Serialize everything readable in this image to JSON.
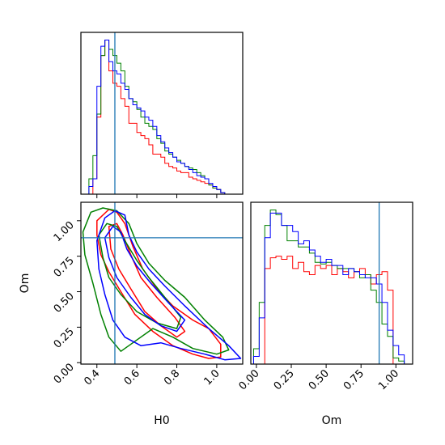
{
  "chart_data": {
    "type": "corner",
    "parameters": [
      "H0",
      "Om"
    ],
    "truth": {
      "H0": 0.49,
      "Om": 0.88
    },
    "series": [
      {
        "color": "#ff0000"
      },
      {
        "color": "#008000"
      },
      {
        "color": "#0000ff"
      }
    ],
    "truth_color": "#1f77b4",
    "panels": [
      {
        "id": "hist-H0",
        "type": "histogram",
        "x_range": [
          0.32,
          1.13
        ],
        "bin_edges": [
          0.32,
          0.36,
          0.38,
          0.4,
          0.42,
          0.44,
          0.46,
          0.48,
          0.5,
          0.52,
          0.54,
          0.56,
          0.58,
          0.6,
          0.62,
          0.64,
          0.66,
          0.68,
          0.7,
          0.72,
          0.74,
          0.76,
          0.78,
          0.8,
          0.82,
          0.84,
          0.86,
          0.88,
          0.9,
          0.92,
          0.94,
          0.96,
          0.98,
          1.0,
          1.02,
          1.04,
          1.07,
          1.13
        ],
        "ylim": [
          0,
          1.05
        ],
        "counts": [
          [
            0.0,
            0.0,
            0.1,
            0.5,
            0.9,
            1.0,
            0.8,
            0.72,
            0.7,
            0.62,
            0.57,
            0.46,
            0.46,
            0.4,
            0.38,
            0.36,
            0.32,
            0.26,
            0.26,
            0.24,
            0.2,
            0.18,
            0.17,
            0.15,
            0.14,
            0.14,
            0.11,
            0.1,
            0.09,
            0.08,
            0.07,
            0.06,
            0.04,
            0.03,
            0.01,
            0.0,
            0.0
          ],
          [
            0.0,
            0.1,
            0.25,
            0.52,
            0.9,
            1.0,
            0.94,
            0.9,
            0.85,
            0.8,
            0.7,
            0.62,
            0.6,
            0.55,
            0.5,
            0.46,
            0.44,
            0.42,
            0.36,
            0.33,
            0.28,
            0.26,
            0.24,
            0.22,
            0.2,
            0.18,
            0.17,
            0.16,
            0.14,
            0.12,
            0.1,
            0.06,
            0.04,
            0.03,
            0.01,
            0.0,
            0.0
          ],
          [
            0.0,
            0.05,
            0.1,
            0.7,
            0.96,
            1.0,
            0.86,
            0.8,
            0.78,
            0.72,
            0.68,
            0.62,
            0.58,
            0.56,
            0.54,
            0.5,
            0.48,
            0.44,
            0.38,
            0.34,
            0.3,
            0.27,
            0.24,
            0.21,
            0.2,
            0.18,
            0.16,
            0.14,
            0.12,
            0.11,
            0.1,
            0.07,
            0.05,
            0.03,
            0.01,
            0.0,
            0.0
          ]
        ]
      },
      {
        "id": "hist-Om",
        "type": "histogram",
        "x_range": [
          -0.04,
          1.12
        ],
        "bin_edges": [
          -0.02,
          0.02,
          0.06,
          0.1,
          0.14,
          0.18,
          0.22,
          0.26,
          0.3,
          0.34,
          0.38,
          0.42,
          0.46,
          0.5,
          0.54,
          0.58,
          0.62,
          0.66,
          0.7,
          0.74,
          0.78,
          0.82,
          0.86,
          0.9,
          0.94,
          0.98,
          1.02,
          1.06,
          1.1
        ],
        "ylim": [
          0,
          1.05
        ],
        "counts": [
          [
            0.0,
            0.0,
            0.62,
            0.69,
            0.7,
            0.68,
            0.7,
            0.62,
            0.66,
            0.6,
            0.58,
            0.64,
            0.62,
            0.64,
            0.58,
            0.62,
            0.6,
            0.56,
            0.6,
            0.62,
            0.58,
            0.52,
            0.58,
            0.6,
            0.48,
            0.0,
            0.0,
            0.0
          ],
          [
            0.1,
            0.4,
            0.9,
            1.0,
            0.97,
            0.9,
            0.8,
            0.8,
            0.76,
            0.76,
            0.72,
            0.66,
            0.65,
            0.66,
            0.64,
            0.62,
            0.62,
            0.62,
            0.6,
            0.56,
            0.58,
            0.48,
            0.4,
            0.26,
            0.18,
            0.04,
            0.02,
            0.0
          ],
          [
            0.05,
            0.3,
            0.82,
            0.98,
            0.98,
            0.9,
            0.9,
            0.86,
            0.78,
            0.8,
            0.74,
            0.7,
            0.66,
            0.68,
            0.64,
            0.64,
            0.58,
            0.62,
            0.6,
            0.58,
            0.56,
            0.56,
            0.52,
            0.4,
            0.22,
            0.12,
            0.06,
            0.0
          ]
        ]
      },
      {
        "id": "contour-H0-Om",
        "type": "contour",
        "x_range": [
          0.32,
          1.13
        ],
        "y_range": [
          -0.01,
          1.13
        ],
        "xlabel": "H0",
        "ylabel": "Om",
        "xticks": [
          0.4,
          0.6,
          0.8,
          1.0
        ],
        "xtick_labels": [
          "0.4",
          "0.6",
          "0.8",
          "1.0"
        ],
        "yticks": [
          0.0,
          0.25,
          0.5,
          0.75,
          1.0
        ],
        "ytick_labels": [
          "0.00",
          "0.25",
          "0.50",
          "0.75",
          "1.00"
        ],
        "contours": [
          {
            "series": 0,
            "level": "outer",
            "points": [
              [
                0.4,
                1.0
              ],
              [
                0.46,
                1.08
              ],
              [
                0.5,
                1.06
              ],
              [
                0.54,
                0.98
              ],
              [
                0.58,
                0.82
              ],
              [
                0.63,
                0.66
              ],
              [
                0.7,
                0.52
              ],
              [
                0.78,
                0.4
              ],
              [
                0.88,
                0.3
              ],
              [
                0.96,
                0.24
              ],
              [
                1.02,
                0.13
              ],
              [
                1.02,
                0.04
              ],
              [
                0.96,
                0.03
              ],
              [
                0.88,
                0.06
              ],
              [
                0.78,
                0.12
              ],
              [
                0.68,
                0.22
              ],
              [
                0.59,
                0.34
              ],
              [
                0.52,
                0.5
              ],
              [
                0.46,
                0.64
              ],
              [
                0.42,
                0.76
              ],
              [
                0.4,
                0.9
              ],
              [
                0.4,
                1.0
              ]
            ]
          },
          {
            "series": 0,
            "level": "inner",
            "points": [
              [
                0.46,
                0.96
              ],
              [
                0.5,
                0.98
              ],
              [
                0.53,
                0.9
              ],
              [
                0.57,
                0.76
              ],
              [
                0.62,
                0.6
              ],
              [
                0.7,
                0.46
              ],
              [
                0.79,
                0.32
              ],
              [
                0.84,
                0.22
              ],
              [
                0.8,
                0.18
              ],
              [
                0.72,
                0.26
              ],
              [
                0.64,
                0.36
              ],
              [
                0.57,
                0.52
              ],
              [
                0.51,
                0.66
              ],
              [
                0.47,
                0.8
              ],
              [
                0.46,
                0.96
              ]
            ]
          },
          {
            "series": 1,
            "level": "outer",
            "points": [
              [
                0.33,
                0.92
              ],
              [
                0.37,
                1.06
              ],
              [
                0.43,
                1.09
              ],
              [
                0.5,
                1.07
              ],
              [
                0.56,
                0.98
              ],
              [
                0.6,
                0.84
              ],
              [
                0.66,
                0.7
              ],
              [
                0.74,
                0.58
              ],
              [
                0.84,
                0.46
              ],
              [
                0.94,
                0.3
              ],
              [
                1.03,
                0.18
              ],
              [
                1.06,
                0.09
              ],
              [
                1.0,
                0.06
              ],
              [
                0.88,
                0.1
              ],
              [
                0.78,
                0.18
              ],
              [
                0.68,
                0.24
              ],
              [
                0.58,
                0.14
              ],
              [
                0.52,
                0.08
              ],
              [
                0.46,
                0.18
              ],
              [
                0.42,
                0.34
              ],
              [
                0.38,
                0.56
              ],
              [
                0.34,
                0.76
              ],
              [
                0.33,
                0.92
              ]
            ]
          },
          {
            "series": 1,
            "level": "inner",
            "points": [
              [
                0.41,
                0.9
              ],
              [
                0.45,
                0.98
              ],
              [
                0.5,
                0.96
              ],
              [
                0.54,
                0.86
              ],
              [
                0.6,
                0.72
              ],
              [
                0.66,
                0.6
              ],
              [
                0.74,
                0.46
              ],
              [
                0.82,
                0.32
              ],
              [
                0.8,
                0.24
              ],
              [
                0.7,
                0.28
              ],
              [
                0.6,
                0.36
              ],
              [
                0.52,
                0.48
              ],
              [
                0.46,
                0.6
              ],
              [
                0.43,
                0.74
              ],
              [
                0.41,
                0.9
              ]
            ]
          },
          {
            "series": 2,
            "level": "outer",
            "points": [
              [
                0.4,
                0.86
              ],
              [
                0.44,
                1.02
              ],
              [
                0.49,
                1.07
              ],
              [
                0.54,
                1.04
              ],
              [
                0.56,
                0.9
              ],
              [
                0.6,
                0.78
              ],
              [
                0.66,
                0.66
              ],
              [
                0.74,
                0.54
              ],
              [
                0.84,
                0.4
              ],
              [
                0.96,
                0.24
              ],
              [
                1.06,
                0.12
              ],
              [
                1.12,
                0.03
              ],
              [
                1.04,
                0.02
              ],
              [
                0.94,
                0.06
              ],
              [
                0.82,
                0.1
              ],
              [
                0.72,
                0.14
              ],
              [
                0.62,
                0.12
              ],
              [
                0.54,
                0.18
              ],
              [
                0.48,
                0.3
              ],
              [
                0.44,
                0.48
              ],
              [
                0.41,
                0.66
              ],
              [
                0.4,
                0.86
              ]
            ]
          },
          {
            "series": 2,
            "level": "inner",
            "points": [
              [
                0.44,
                0.88
              ],
              [
                0.48,
                0.96
              ],
              [
                0.52,
                0.92
              ],
              [
                0.55,
                0.8
              ],
              [
                0.6,
                0.68
              ],
              [
                0.67,
                0.56
              ],
              [
                0.76,
                0.42
              ],
              [
                0.84,
                0.3
              ],
              [
                0.8,
                0.22
              ],
              [
                0.72,
                0.26
              ],
              [
                0.64,
                0.34
              ],
              [
                0.57,
                0.46
              ],
              [
                0.5,
                0.6
              ],
              [
                0.46,
                0.74
              ],
              [
                0.44,
                0.88
              ]
            ]
          }
        ]
      }
    ],
    "bottom_right": {
      "xlabel": "Om",
      "xticks": [
        0.0,
        0.25,
        0.5,
        0.75,
        1.0
      ],
      "xtick_labels": [
        "0.00",
        "0.25",
        "0.50",
        "0.75",
        "1.00"
      ]
    }
  }
}
